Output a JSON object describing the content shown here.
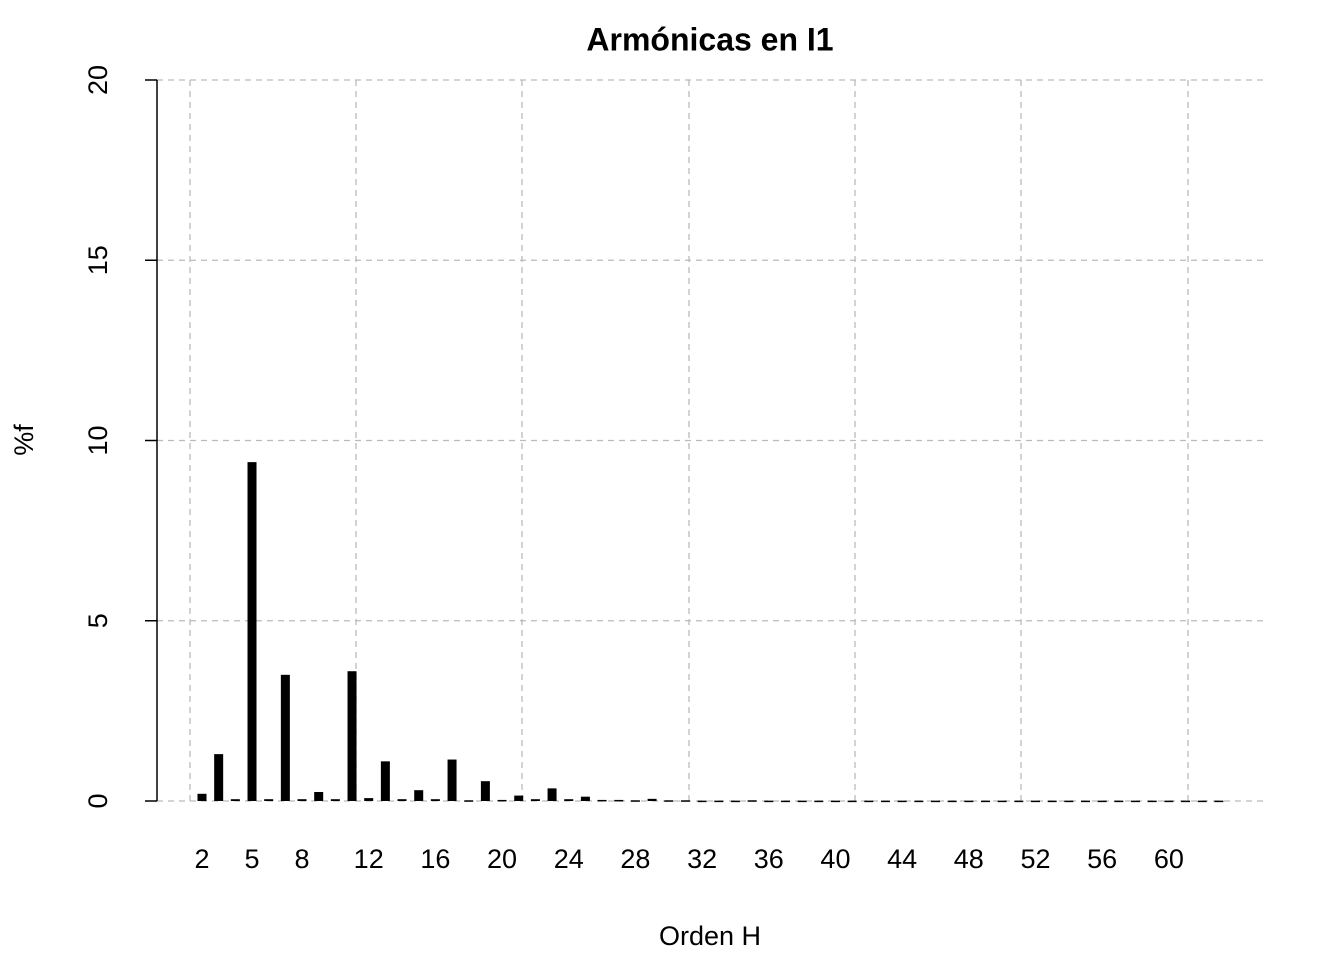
{
  "chart_data": {
    "type": "bar",
    "title": "Armónicas en I1",
    "x_label": "Orden H",
    "y_label": "%f",
    "categories": [
      "2",
      null,
      null,
      "5",
      null,
      null,
      "8",
      null,
      null,
      null,
      "12",
      null,
      null,
      null,
      "16",
      null,
      null,
      null,
      "20",
      null,
      null,
      null,
      "24",
      null,
      null,
      null,
      "28",
      null,
      null,
      null,
      "32",
      null,
      null,
      null,
      "36",
      null,
      null,
      null,
      "40",
      null,
      null,
      null,
      "44",
      null,
      null,
      null,
      "48",
      null,
      null,
      null,
      "52",
      null,
      null,
      null,
      "56",
      null,
      null,
      null,
      "60",
      null,
      null,
      null
    ],
    "values": [
      0.2,
      1.3,
      0.05,
      9.4,
      0.05,
      3.5,
      0.05,
      0.25,
      0.05,
      3.6,
      0.08,
      1.1,
      0.05,
      0.3,
      0.05,
      1.15,
      0.02,
      0.55,
      0.03,
      0.15,
      0.05,
      0.35,
      0.05,
      0.12,
      0.03,
      0.03,
      0.02,
      0.06,
      0.02,
      0.02,
      0.01,
      0.01,
      0.01,
      0.02,
      0.01,
      0.01,
      0.01,
      0.01,
      0.01,
      0.01,
      0.01,
      0.01,
      0.01,
      0.01,
      0.01,
      0.01,
      0.01,
      0.01,
      0.01,
      0.01,
      0.01,
      0.01,
      0.01,
      0.01,
      0.01,
      0.01,
      0.01,
      0.01,
      0.01,
      0.01,
      0.01,
      0.01
    ],
    "color": "#000000",
    "ylim": [
      0,
      20
    ],
    "yticks": [
      0,
      5,
      10,
      15,
      20
    ],
    "grid": true
  }
}
